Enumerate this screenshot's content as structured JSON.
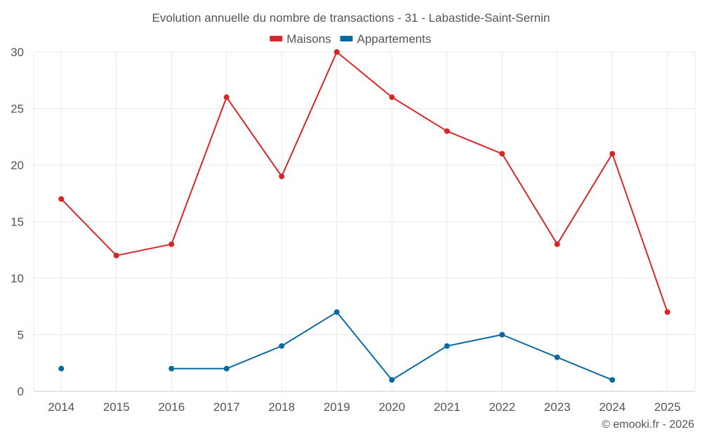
{
  "chart_data": {
    "type": "line",
    "title": "Evolution annuelle du nombre de transactions - 31 - Labastide-Saint-Sernin",
    "categories": [
      "2014",
      "2015",
      "2016",
      "2017",
      "2018",
      "2019",
      "2020",
      "2021",
      "2022",
      "2023",
      "2024",
      "2025"
    ],
    "ylim": [
      0,
      30
    ],
    "yticks": [
      0,
      5,
      10,
      15,
      20,
      25,
      30
    ],
    "grid": true,
    "legend_position": "top-center",
    "xlabel": "",
    "ylabel": "",
    "series": [
      {
        "name": "Maisons",
        "color": "#d62728",
        "values": [
          17,
          12,
          13,
          26,
          19,
          30,
          26,
          23,
          21,
          13,
          21,
          7
        ]
      },
      {
        "name": "Appartements",
        "color": "#0b6aa0",
        "values": [
          2,
          null,
          2,
          2,
          4,
          7,
          1,
          4,
          5,
          3,
          1,
          null
        ]
      }
    ],
    "credit": "© emooki.fr - 2026"
  }
}
